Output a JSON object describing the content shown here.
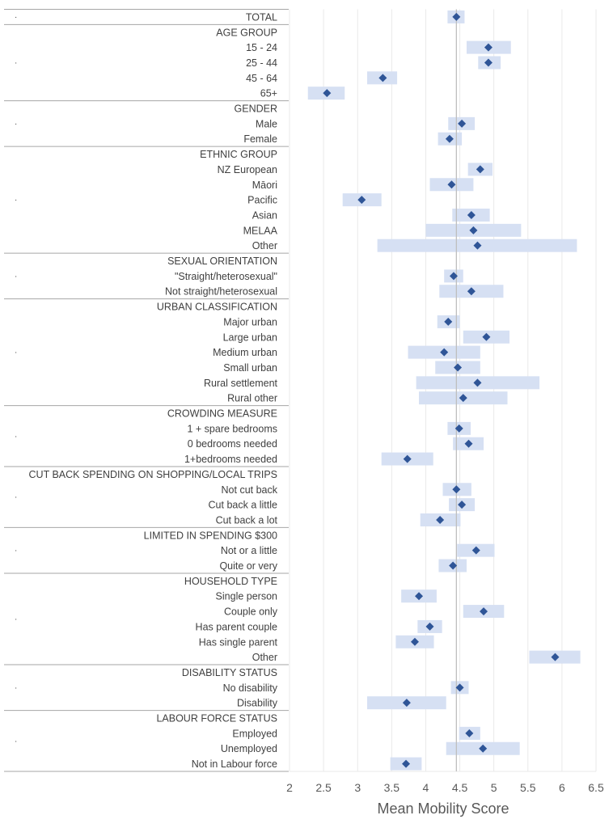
{
  "colors": {
    "ci_fill": "#d6e0f3",
    "point": "#2f5597",
    "reference_line": "#bfbfbf",
    "gridline": "#e9e9e9",
    "separator": "#a6a6a6",
    "text": "#404040",
    "axis_text": "#595959"
  },
  "chart_data": {
    "type": "forest-plot",
    "xlabel": "Mean Mobility Score",
    "xlim": [
      2,
      6.5
    ],
    "xticks": [
      "2",
      "2.5",
      "3",
      "3.5",
      "4",
      "4.5",
      "5",
      "5.5",
      "6",
      "6.5"
    ],
    "grid": "vertical",
    "reference_line": 4.45,
    "rows": [
      {
        "label": "TOTAL",
        "header": false,
        "mean": 4.45,
        "lo": 4.32,
        "hi": 4.57
      },
      {
        "label": "AGE GROUP",
        "header": true
      },
      {
        "label": "15 - 24",
        "header": false,
        "mean": 4.92,
        "lo": 4.6,
        "hi": 5.25
      },
      {
        "label": "25 - 44",
        "header": false,
        "mean": 4.92,
        "lo": 4.77,
        "hi": 5.1
      },
      {
        "label": "45 - 64",
        "header": false,
        "mean": 3.37,
        "lo": 3.14,
        "hi": 3.58
      },
      {
        "label": "65+",
        "header": false,
        "mean": 2.55,
        "lo": 2.27,
        "hi": 2.81
      },
      {
        "label": "GENDER",
        "header": true
      },
      {
        "label": "Male",
        "header": false,
        "mean": 4.53,
        "lo": 4.33,
        "hi": 4.72
      },
      {
        "label": "Female",
        "header": false,
        "mean": 4.35,
        "lo": 4.18,
        "hi": 4.53
      },
      {
        "label": "ETHNIC GROUP",
        "header": true
      },
      {
        "label": "NZ European",
        "header": false,
        "mean": 4.8,
        "lo": 4.62,
        "hi": 4.98
      },
      {
        "label": "Māori",
        "header": false,
        "mean": 4.38,
        "lo": 4.06,
        "hi": 4.7
      },
      {
        "label": "Pacific",
        "header": false,
        "mean": 3.06,
        "lo": 2.78,
        "hi": 3.35
      },
      {
        "label": "Asian",
        "header": false,
        "mean": 4.67,
        "lo": 4.39,
        "hi": 4.94
      },
      {
        "label": "MELAA",
        "header": false,
        "mean": 4.7,
        "lo": 4.0,
        "hi": 5.4
      },
      {
        "label": "Other",
        "header": false,
        "mean": 4.76,
        "lo": 3.29,
        "hi": 6.22
      },
      {
        "label": "SEXUAL ORIENTATION",
        "header": true
      },
      {
        "label": "\"Straight/heterosexual\"",
        "header": false,
        "mean": 4.41,
        "lo": 4.27,
        "hi": 4.55
      },
      {
        "label": "Not straight/heterosexual",
        "header": false,
        "mean": 4.67,
        "lo": 4.2,
        "hi": 5.14
      },
      {
        "label": "URBAN CLASSIFICATION",
        "header": true
      },
      {
        "label": "Major urban",
        "header": false,
        "mean": 4.33,
        "lo": 4.17,
        "hi": 4.5
      },
      {
        "label": "Large urban",
        "header": false,
        "mean": 4.89,
        "lo": 4.55,
        "hi": 5.23
      },
      {
        "label": "Medium urban",
        "header": false,
        "mean": 4.27,
        "lo": 3.74,
        "hi": 4.8
      },
      {
        "label": "Small urban",
        "header": false,
        "mean": 4.47,
        "lo": 4.14,
        "hi": 4.8
      },
      {
        "label": "Rural settlement",
        "header": false,
        "mean": 4.76,
        "lo": 3.86,
        "hi": 5.67
      },
      {
        "label": "Rural other",
        "header": false,
        "mean": 4.55,
        "lo": 3.9,
        "hi": 5.2
      },
      {
        "label": "CROWDING MEASURE",
        "header": true
      },
      {
        "label": "1 + spare bedrooms",
        "header": false,
        "mean": 4.49,
        "lo": 4.32,
        "hi": 4.66
      },
      {
        "label": "0 bedrooms needed",
        "header": false,
        "mean": 4.63,
        "lo": 4.4,
        "hi": 4.85
      },
      {
        "label": "1+bedrooms needed",
        "header": false,
        "mean": 3.73,
        "lo": 3.35,
        "hi": 4.11
      },
      {
        "label": "CUT BACK SPENDING ON SHOPPING/LOCAL TRIPS",
        "header": true
      },
      {
        "label": "Not cut back",
        "header": false,
        "mean": 4.45,
        "lo": 4.25,
        "hi": 4.67
      },
      {
        "label": "Cut back a little",
        "header": false,
        "mean": 4.53,
        "lo": 4.34,
        "hi": 4.72
      },
      {
        "label": "Cut back a lot",
        "header": false,
        "mean": 4.21,
        "lo": 3.92,
        "hi": 4.51
      },
      {
        "label": "LIMITED IN SPENDING $300",
        "header": true
      },
      {
        "label": "Not or a little",
        "header": false,
        "mean": 4.74,
        "lo": 4.46,
        "hi": 5.01
      },
      {
        "label": "Quite or very",
        "header": false,
        "mean": 4.4,
        "lo": 4.19,
        "hi": 4.6
      },
      {
        "label": "HOUSEHOLD TYPE",
        "header": true
      },
      {
        "label": "Single person",
        "header": false,
        "mean": 3.9,
        "lo": 3.64,
        "hi": 4.16
      },
      {
        "label": "Couple only",
        "header": false,
        "mean": 4.85,
        "lo": 4.55,
        "hi": 5.15
      },
      {
        "label": "Has parent couple",
        "header": false,
        "mean": 4.06,
        "lo": 3.88,
        "hi": 4.24
      },
      {
        "label": "Has single parent",
        "header": false,
        "mean": 3.84,
        "lo": 3.56,
        "hi": 4.12
      },
      {
        "label": "Other",
        "header": false,
        "mean": 5.9,
        "lo": 5.52,
        "hi": 6.27
      },
      {
        "label": "DISABILITY STATUS",
        "header": true
      },
      {
        "label": "No disability",
        "header": false,
        "mean": 4.5,
        "lo": 4.37,
        "hi": 4.63
      },
      {
        "label": "Disability",
        "header": false,
        "mean": 3.72,
        "lo": 3.14,
        "hi": 4.3
      },
      {
        "label": "LABOUR FORCE STATUS",
        "header": true
      },
      {
        "label": "Employed",
        "header": false,
        "mean": 4.64,
        "lo": 4.49,
        "hi": 4.8
      },
      {
        "label": "Unemployed",
        "header": false,
        "mean": 4.84,
        "lo": 4.3,
        "hi": 5.38
      },
      {
        "label": "Not in Labour force",
        "header": false,
        "mean": 3.71,
        "lo": 3.48,
        "hi": 3.94
      }
    ],
    "groups": [
      {
        "rows": [
          0,
          0
        ],
        "dot": "·"
      },
      {
        "rows": [
          1,
          5
        ],
        "dot": "·"
      },
      {
        "rows": [
          6,
          8
        ],
        "dot": "·"
      },
      {
        "rows": [
          9,
          15
        ],
        "dot": "·"
      },
      {
        "rows": [
          16,
          18
        ],
        "dot": "·"
      },
      {
        "rows": [
          19,
          25
        ],
        "dot": "·"
      },
      {
        "rows": [
          26,
          29
        ],
        "dot": "·"
      },
      {
        "rows": [
          30,
          33
        ],
        "dot": "·"
      },
      {
        "rows": [
          34,
          36
        ],
        "dot": "·"
      },
      {
        "rows": [
          37,
          42
        ],
        "dot": "·"
      },
      {
        "rows": [
          43,
          45
        ],
        "dot": "·"
      },
      {
        "rows": [
          46,
          49
        ],
        "dot": "·"
      }
    ]
  }
}
